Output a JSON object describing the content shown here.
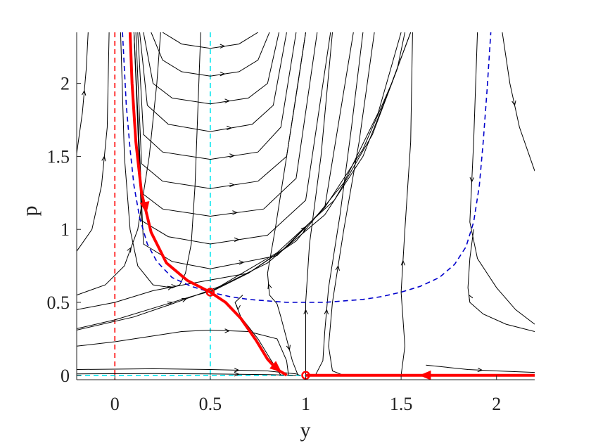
{
  "chart_data": {
    "type": "phase-portrait",
    "xlabel": "y",
    "ylabel": "p",
    "xlim": [
      -0.2,
      2.2
    ],
    "ylim": [
      -0.03,
      2.35
    ],
    "xticks": [
      {
        "value": 0,
        "label": "0"
      },
      {
        "value": 0.5,
        "label": "0.5"
      },
      {
        "value": 1,
        "label": "1"
      },
      {
        "value": 1.5,
        "label": "1.5"
      },
      {
        "value": 2,
        "label": "2"
      }
    ],
    "yticks": [
      {
        "value": 0,
        "label": "0"
      },
      {
        "value": 0.5,
        "label": "0.5"
      },
      {
        "value": 1,
        "label": "1"
      },
      {
        "value": 1.5,
        "label": "1.5"
      },
      {
        "value": 2,
        "label": "2"
      }
    ],
    "grid": false,
    "colors": {
      "trajectory": "#000000",
      "stable_manifold": "#ff0000",
      "nullcline_p": "#0000cc",
      "nullcline_y": "#00e5ee",
      "y_zero": "#ff0000"
    },
    "reference_lines": [
      {
        "orientation": "vertical",
        "x": 0,
        "color": "#ff0000",
        "style": "dashed"
      },
      {
        "orientation": "vertical",
        "x": 0.5,
        "color": "#00e5ee",
        "style": "dashed"
      },
      {
        "orientation": "horizontal",
        "y": 0,
        "color": "#00e5ee",
        "style": "dashed"
      }
    ],
    "nullcline": {
      "color": "#0000cc",
      "style": "dashed",
      "points": [
        [
          0.04,
          2.35
        ],
        [
          0.05,
          2.1
        ],
        [
          0.06,
          1.85
        ],
        [
          0.08,
          1.55
        ],
        [
          0.1,
          1.3
        ],
        [
          0.13,
          1.08
        ],
        [
          0.17,
          0.9
        ],
        [
          0.22,
          0.78
        ],
        [
          0.3,
          0.67
        ],
        [
          0.4,
          0.61
        ],
        [
          0.5,
          0.57
        ],
        [
          0.6,
          0.54
        ],
        [
          0.7,
          0.52
        ],
        [
          0.8,
          0.51
        ],
        [
          0.9,
          0.5
        ],
        [
          1.0,
          0.5
        ],
        [
          1.1,
          0.5
        ],
        [
          1.2,
          0.51
        ],
        [
          1.3,
          0.52
        ],
        [
          1.4,
          0.54
        ],
        [
          1.5,
          0.57
        ],
        [
          1.6,
          0.61
        ],
        [
          1.7,
          0.67
        ],
        [
          1.78,
          0.76
        ],
        [
          1.84,
          0.88
        ],
        [
          1.88,
          1.05
        ],
        [
          1.91,
          1.3
        ],
        [
          1.93,
          1.6
        ],
        [
          1.95,
          1.95
        ],
        [
          1.97,
          2.35
        ]
      ]
    },
    "equilibria": [
      {
        "x": 0.5,
        "y": 0.57
      },
      {
        "x": 1,
        "y": 0
      }
    ],
    "stable_branches": [
      {
        "points": [
          [
            0.08,
            2.35
          ],
          [
            0.09,
            2.0
          ],
          [
            0.11,
            1.6
          ],
          [
            0.14,
            1.25
          ],
          [
            0.19,
            0.98
          ],
          [
            0.27,
            0.77
          ],
          [
            0.38,
            0.65
          ],
          [
            0.5,
            0.57
          ]
        ],
        "arrow_at": 3
      },
      {
        "points": [
          [
            0.5,
            0.57
          ],
          [
            0.58,
            0.5
          ],
          [
            0.66,
            0.39
          ],
          [
            0.74,
            0.24
          ],
          [
            0.8,
            0.11
          ],
          [
            0.85,
            0.04
          ],
          [
            0.89,
            0.01
          ],
          [
            0.9,
            0.0
          ]
        ],
        "arrow_at": 5
      },
      {
        "points": [
          [
            2.2,
            0.0
          ],
          [
            1.8,
            0.0
          ],
          [
            1.4,
            0.0
          ],
          [
            1.0,
            0.0
          ]
        ],
        "arrow_at": 1
      }
    ],
    "trajectories": [
      {
        "points": [
          [
            0.25,
            2.35
          ],
          [
            0.35,
            2.27
          ],
          [
            0.5,
            2.24
          ],
          [
            0.65,
            2.27
          ],
          [
            0.75,
            2.35
          ]
        ],
        "arrow_at": 2
      },
      {
        "points": [
          [
            0.19,
            2.35
          ],
          [
            0.25,
            2.16
          ],
          [
            0.35,
            2.08
          ],
          [
            0.5,
            2.05
          ],
          [
            0.65,
            2.08
          ],
          [
            0.75,
            2.16
          ],
          [
            0.81,
            2.35
          ]
        ],
        "arrow_at": 3
      },
      {
        "points": [
          [
            0.15,
            2.35
          ],
          [
            0.2,
            2.0
          ],
          [
            0.3,
            1.9
          ],
          [
            0.5,
            1.86
          ],
          [
            0.7,
            1.9
          ],
          [
            0.8,
            2.0
          ],
          [
            0.86,
            2.35
          ]
        ],
        "arrow_at": 3
      },
      {
        "points": [
          [
            0.13,
            2.35
          ],
          [
            0.17,
            1.85
          ],
          [
            0.28,
            1.72
          ],
          [
            0.5,
            1.67
          ],
          [
            0.72,
            1.72
          ],
          [
            0.83,
            1.85
          ],
          [
            0.9,
            2.35
          ]
        ],
        "arrow_at": 3
      },
      {
        "points": [
          [
            0.12,
            2.35
          ],
          [
            0.15,
            1.65
          ],
          [
            0.25,
            1.53
          ],
          [
            0.5,
            1.48
          ],
          [
            0.75,
            1.53
          ],
          [
            0.87,
            1.7
          ],
          [
            0.95,
            2.35
          ]
        ],
        "arrow_at": 3
      },
      {
        "points": [
          [
            0.11,
            2.35
          ],
          [
            0.14,
            1.45
          ],
          [
            0.25,
            1.33
          ],
          [
            0.5,
            1.28
          ],
          [
            0.75,
            1.33
          ],
          [
            0.9,
            1.5
          ],
          [
            1.0,
            2.35
          ]
        ],
        "arrow_at": 3
      },
      {
        "points": [
          [
            0.1,
            2.35
          ],
          [
            0.14,
            1.25
          ],
          [
            0.25,
            1.14
          ],
          [
            0.5,
            1.09
          ],
          [
            0.78,
            1.14
          ],
          [
            0.95,
            1.35
          ],
          [
            1.06,
            2.35
          ]
        ],
        "arrow_at": 3
      },
      {
        "points": [
          [
            0.1,
            2.35
          ],
          [
            0.14,
            1.06
          ],
          [
            0.28,
            0.95
          ],
          [
            0.5,
            0.9
          ],
          [
            0.8,
            0.96
          ],
          [
            1.0,
            1.2
          ],
          [
            1.13,
            2.35
          ]
        ],
        "arrow_at": 3
      },
      {
        "points": [
          [
            0.1,
            2.35
          ],
          [
            0.15,
            0.9
          ],
          [
            0.3,
            0.78
          ],
          [
            0.5,
            0.73
          ],
          [
            0.85,
            0.82
          ],
          [
            1.1,
            1.15
          ],
          [
            1.25,
            2.35
          ]
        ],
        "arrow_at": 3
      },
      {
        "points": [
          [
            -0.2,
            0.85
          ],
          [
            -0.12,
            1.0
          ],
          [
            -0.07,
            1.3
          ],
          [
            -0.04,
            1.7
          ],
          [
            -0.03,
            2.35
          ]
        ],
        "arrow_at": 2
      },
      {
        "points": [
          [
            -0.2,
            1.52
          ],
          [
            -0.17,
            1.8
          ],
          [
            -0.15,
            2.1
          ],
          [
            -0.14,
            2.35
          ]
        ],
        "arrow_at": 1
      },
      {
        "points": [
          [
            -0.2,
            0.55
          ],
          [
            -0.05,
            0.62
          ],
          [
            0.05,
            0.75
          ],
          [
            0.12,
            1.0
          ],
          [
            0.18,
            1.5
          ],
          [
            0.22,
            2.0
          ],
          [
            0.24,
            2.35
          ]
        ],
        "arrow_at": 2
      },
      {
        "points": [
          [
            0.03,
            2.35
          ],
          [
            0.05,
            1.5
          ],
          [
            0.08,
            1.0
          ],
          [
            0.12,
            0.75
          ],
          [
            0.2,
            0.62
          ],
          [
            0.3,
            0.6
          ],
          [
            0.34,
            0.62
          ],
          [
            0.37,
            0.7
          ],
          [
            0.4,
            0.9
          ],
          [
            0.42,
            1.3
          ],
          [
            0.45,
            2.35
          ]
        ],
        "arrow_at": 5
      },
      {
        "points": [
          [
            0.5,
            0.57
          ],
          [
            0.7,
            0.7
          ],
          [
            0.9,
            0.88
          ],
          [
            1.1,
            1.15
          ],
          [
            1.3,
            1.55
          ],
          [
            1.45,
            2.0
          ],
          [
            1.55,
            2.35
          ]
        ],
        "arrow_at": 2
      },
      {
        "points": [
          [
            -0.2,
            0.32
          ],
          [
            0.0,
            0.38
          ],
          [
            0.2,
            0.46
          ],
          [
            0.4,
            0.54
          ],
          [
            0.5,
            0.575
          ],
          [
            0.8,
            0.77
          ],
          [
            1.1,
            1.1
          ],
          [
            1.3,
            1.5
          ],
          [
            1.45,
            2.0
          ],
          [
            1.55,
            2.35
          ]
        ],
        "arrow_at": 2
      },
      {
        "points": [
          [
            -0.2,
            0.31
          ],
          [
            0.1,
            0.4
          ],
          [
            0.3,
            0.49
          ],
          [
            0.45,
            0.56
          ],
          [
            0.55,
            0.61
          ],
          [
            0.85,
            0.84
          ],
          [
            1.15,
            1.2
          ],
          [
            1.35,
            1.65
          ],
          [
            1.48,
            2.1
          ],
          [
            1.52,
            2.35
          ]
        ],
        "arrow_at": 2
      },
      {
        "points": [
          [
            -0.2,
            0.45
          ],
          [
            0.0,
            0.5
          ],
          [
            0.2,
            0.58
          ],
          [
            0.4,
            0.63
          ],
          [
            0.7,
            0.7
          ],
          [
            0.95,
            0.92
          ],
          [
            1.2,
            1.32
          ],
          [
            1.38,
            1.8
          ],
          [
            1.5,
            2.35
          ]
        ],
        "arrow_at": 2
      },
      {
        "points": [
          [
            -0.2,
            0.2
          ],
          [
            0.0,
            0.23
          ],
          [
            0.2,
            0.27
          ],
          [
            0.35,
            0.3
          ],
          [
            0.5,
            0.31
          ],
          [
            0.7,
            0.3
          ],
          [
            0.85,
            0.25
          ],
          [
            0.9,
            0.1
          ],
          [
            0.91,
            0.0
          ]
        ],
        "arrow_at": 4
      },
      {
        "points": [
          [
            -0.2,
            0.04
          ],
          [
            0.2,
            0.045
          ],
          [
            0.5,
            0.04
          ],
          [
            0.8,
            0.03
          ],
          [
            0.95,
            0.01
          ],
          [
            0.97,
            0.0
          ]
        ],
        "arrow_at": 2
      },
      {
        "points": [
          [
            -0.2,
            0.01
          ],
          [
            0.2,
            0.012
          ],
          [
            0.5,
            0.01
          ],
          [
            0.8,
            0.005
          ],
          [
            0.95,
            0.0
          ]
        ],
        "arrow_at": 2
      },
      {
        "points": [
          [
            0.67,
            0.55
          ],
          [
            0.63,
            0.5
          ],
          [
            0.66,
            0.4
          ],
          [
            0.75,
            0.25
          ],
          [
            0.82,
            0.1
          ],
          [
            0.87,
            0.0
          ]
        ],
        "arrow_at": 1
      },
      {
        "points": [
          [
            0.85,
            0.49
          ],
          [
            0.81,
            0.55
          ],
          [
            0.8,
            0.7
          ],
          [
            0.84,
            1.0
          ],
          [
            0.9,
            1.5
          ],
          [
            0.96,
            2.0
          ],
          [
            1.0,
            2.35
          ]
        ],
        "arrow_at": 1
      },
      {
        "points": [
          [
            0.85,
            0.49
          ],
          [
            0.87,
            0.4
          ],
          [
            0.9,
            0.25
          ],
          [
            0.93,
            0.1
          ],
          [
            0.96,
            0.0
          ]
        ],
        "arrow_at": 2
      },
      {
        "points": [
          [
            1.0,
            0.0
          ],
          [
            1.0,
            0.2
          ],
          [
            1.0,
            0.4
          ],
          [
            1.0,
            0.5
          ],
          [
            1.02,
            0.9
          ],
          [
            1.08,
            1.5
          ],
          [
            1.14,
            2.35
          ]
        ],
        "arrow_at": 2
      },
      {
        "points": [
          [
            1.05,
            0.0
          ],
          [
            1.09,
            0.1
          ],
          [
            1.1,
            0.3
          ],
          [
            1.12,
            0.6
          ],
          [
            1.18,
            1.1
          ],
          [
            1.24,
            1.7
          ],
          [
            1.3,
            2.35
          ]
        ],
        "arrow_at": 2
      },
      {
        "points": [
          [
            1.2,
            0.0
          ],
          [
            1.14,
            0.03
          ],
          [
            1.12,
            0.2
          ],
          [
            1.14,
            0.5
          ],
          [
            1.2,
            1.0
          ],
          [
            1.28,
            1.6
          ],
          [
            1.36,
            2.35
          ]
        ],
        "arrow_at": 3
      },
      {
        "points": [
          [
            1.5,
            0.0
          ],
          [
            1.52,
            0.2
          ],
          [
            1.5,
            0.57
          ],
          [
            1.52,
            1.0
          ],
          [
            1.55,
            1.6
          ],
          [
            1.56,
            2.35
          ]
        ],
        "arrow_at": 2
      },
      {
        "points": [
          [
            1.9,
            2.35
          ],
          [
            1.88,
            1.6
          ],
          [
            1.86,
            1.05
          ],
          [
            1.9,
            0.8
          ],
          [
            2.0,
            0.6
          ],
          [
            2.1,
            0.45
          ],
          [
            2.2,
            0.35
          ]
        ],
        "arrow_at": 1
      },
      {
        "points": [
          [
            1.63,
            0.07
          ],
          [
            1.85,
            0.04
          ],
          [
            2.0,
            0.03
          ],
          [
            2.2,
            0.02
          ]
        ],
        "arrow_at": 1
      },
      {
        "points": [
          [
            2.03,
            2.35
          ],
          [
            2.07,
            2.0
          ],
          [
            2.12,
            1.7
          ],
          [
            2.2,
            1.4
          ]
        ],
        "arrow_at": 1
      },
      {
        "points": [
          [
            2.2,
            0.3
          ],
          [
            2.05,
            0.35
          ],
          [
            1.93,
            0.42
          ],
          [
            1.86,
            0.5
          ],
          [
            1.85,
            0.6
          ],
          [
            1.86,
            0.8
          ],
          [
            1.88,
            1.0
          ]
        ],
        "arrow_at": 3
      }
    ]
  }
}
